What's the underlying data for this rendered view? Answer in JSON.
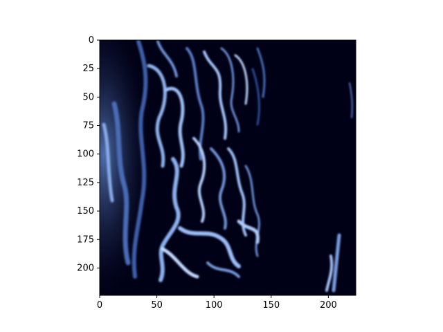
{
  "chart_data": {
    "type": "heatmap",
    "title": "",
    "xlabel": "",
    "ylabel": "",
    "colormap": "blue-on-black",
    "colors": {
      "low": "#000016",
      "mid": "#1f3b78",
      "high": "#c6dcff"
    },
    "xlim": [
      0,
      224
    ],
    "ylim": [
      224,
      0
    ],
    "x_ticks": [
      0,
      50,
      100,
      150,
      200
    ],
    "y_ticks": [
      0,
      25,
      50,
      75,
      100,
      125,
      150,
      175,
      200
    ],
    "x_tick_labels": [
      "0",
      "50",
      "100",
      "150",
      "200"
    ],
    "y_tick_labels": [
      "0",
      "25",
      "50",
      "75",
      "100",
      "125",
      "150",
      "175",
      "200"
    ],
    "grid": false,
    "legend": "none"
  }
}
